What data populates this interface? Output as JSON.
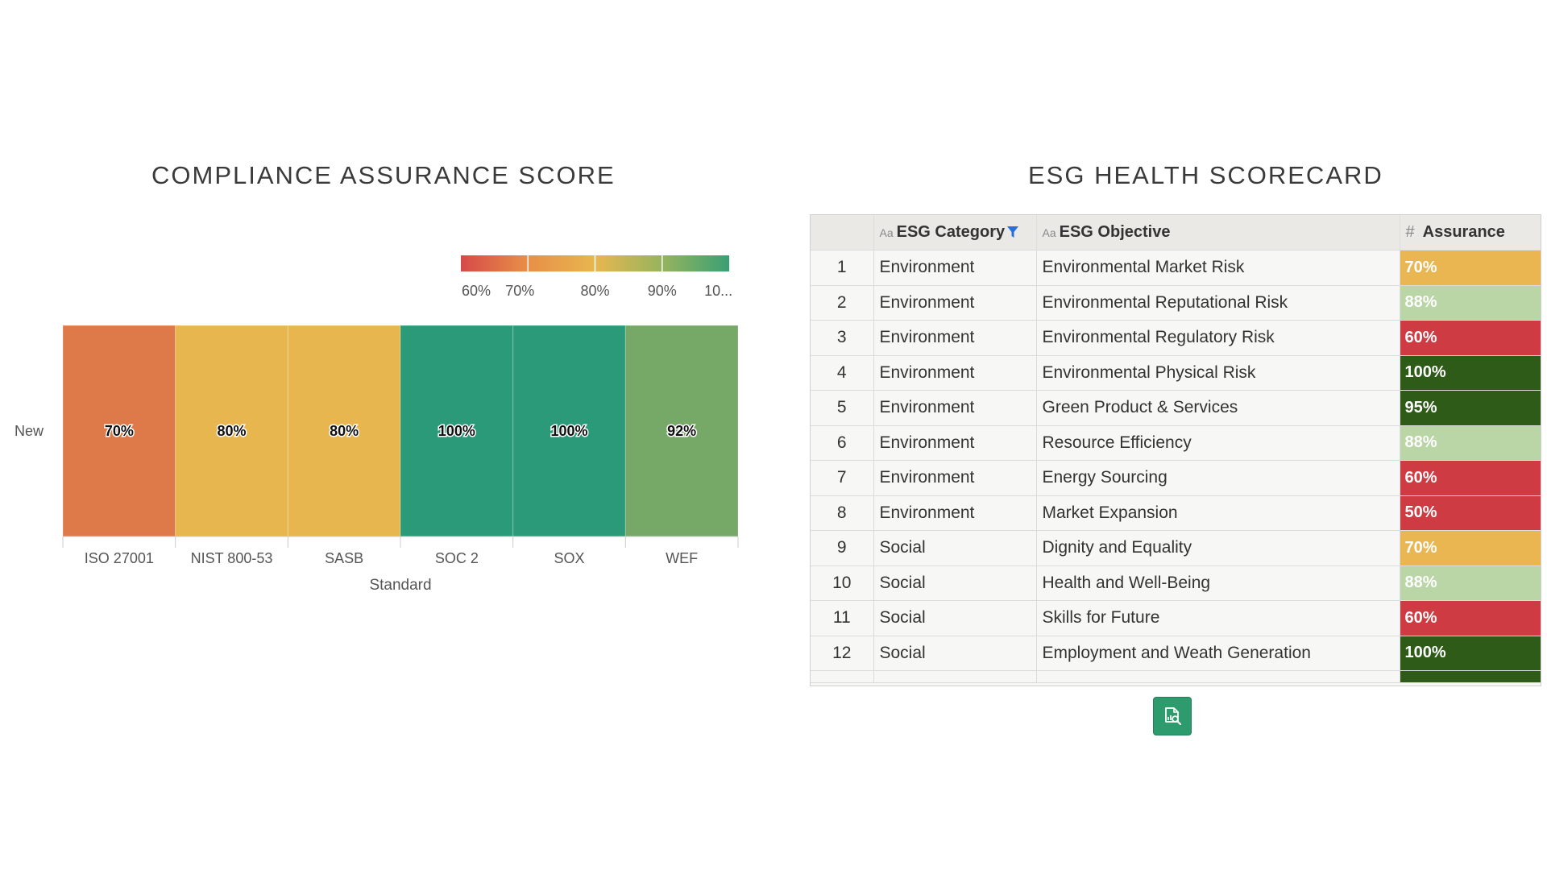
{
  "left_panel": {
    "title": "COMPLIANCE ASSURANCE SCORE"
  },
  "chart_data": {
    "type": "heatmap",
    "title": "COMPLIANCE ASSURANCE SCORE",
    "xlabel": "Standard",
    "ylabel": "",
    "rows": [
      "New"
    ],
    "categories": [
      "ISO 27001",
      "NIST 800-53",
      "SASB",
      "SOC 2",
      "SOX",
      "WEF"
    ],
    "values": [
      70,
      80,
      80,
      100,
      100,
      92
    ],
    "value_labels": [
      "70%",
      "80%",
      "80%",
      "100%",
      "100%",
      "92%"
    ],
    "cell_colors": [
      "#de7a4a",
      "#e8b64f",
      "#e8b64f",
      "#2a9a78",
      "#2a9a78",
      "#76a867"
    ],
    "color_scale": {
      "min": 60,
      "max": 100,
      "colors": [
        "#d64a4a",
        "#e88f47",
        "#e8b64f",
        "#97b45e",
        "#3a9f74"
      ],
      "tick_labels": [
        "60%",
        "70%",
        "80%",
        "90%",
        "10..."
      ],
      "legend_position": "top-right"
    }
  },
  "right_panel": {
    "title": "ESG HEALTH SCORECARD",
    "columns": {
      "category": {
        "type_glyph": "Aa",
        "label": "ESG Category"
      },
      "objective": {
        "type_glyph": "Aa",
        "label": "ESG Objective"
      },
      "assurance": {
        "type_glyph": "#",
        "label": "Assurance"
      }
    },
    "rows": [
      {
        "index": "1",
        "category": "Environment",
        "objective": "Environmental Market Risk",
        "assurance": "70%",
        "bg": "#e9b652",
        "fg": "#ffffff"
      },
      {
        "index": "2",
        "category": "Environment",
        "objective": "Environmental Reputational Risk",
        "assurance": "88%",
        "bg": "#bad5a6",
        "fg": "#ffffff"
      },
      {
        "index": "3",
        "category": "Environment",
        "objective": "Environmental Regulatory Risk",
        "assurance": "60%",
        "bg": "#cf3b43",
        "fg": "#ffffff"
      },
      {
        "index": "4",
        "category": "Environment",
        "objective": "Environmental Physical Risk",
        "assurance": "100%",
        "bg": "#2e5b18",
        "fg": "#ffffff"
      },
      {
        "index": "5",
        "category": "Environment",
        "objective": "Green Product & Services",
        "assurance": "95%",
        "bg": "#2e5b18",
        "fg": "#ffffff"
      },
      {
        "index": "6",
        "category": "Environment",
        "objective": "Resource Efficiency",
        "assurance": "88%",
        "bg": "#bad5a6",
        "fg": "#ffffff"
      },
      {
        "index": "7",
        "category": "Environment",
        "objective": "Energy Sourcing",
        "assurance": "60%",
        "bg": "#cf3b43",
        "fg": "#ffffff"
      },
      {
        "index": "8",
        "category": "Environment",
        "objective": "Market Expansion",
        "assurance": "50%",
        "bg": "#cf3b43",
        "fg": "#ffffff"
      },
      {
        "index": "9",
        "category": "Social",
        "objective": "Dignity and Equality",
        "assurance": "70%",
        "bg": "#e9b652",
        "fg": "#ffffff"
      },
      {
        "index": "10",
        "category": "Social",
        "objective": "Health and Well-Being",
        "assurance": "88%",
        "bg": "#bad5a6",
        "fg": "#ffffff"
      },
      {
        "index": "11",
        "category": "Social",
        "objective": "Skills for Future",
        "assurance": "60%",
        "bg": "#cf3b43",
        "fg": "#ffffff"
      },
      {
        "index": "12",
        "category": "Social",
        "objective": "Employment and Weath Generation",
        "assurance": "100%",
        "bg": "#2e5b18",
        "fg": "#ffffff"
      }
    ],
    "explore_button": {
      "icon": "explore-data-icon",
      "color": "#2e9b6f"
    }
  }
}
